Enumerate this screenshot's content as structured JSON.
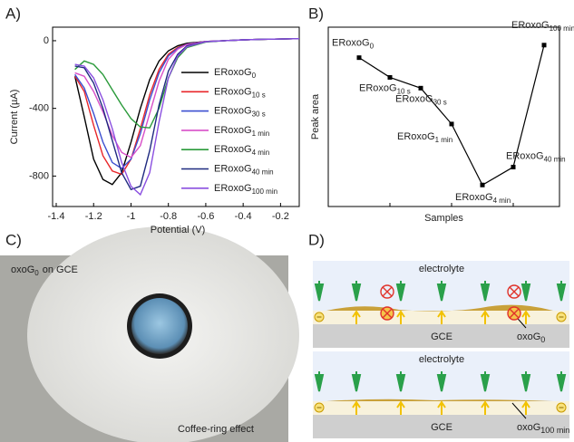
{
  "chart_data": [
    {
      "type": "line",
      "panel": "A)",
      "x_label": "Potential (V)",
      "y_label": "Current (µA)",
      "x": [
        -1.3,
        -1.25,
        -1.2,
        -1.15,
        -1.1,
        -1.05,
        -1.0,
        -0.95,
        -0.9,
        -0.85,
        -0.8,
        -0.75,
        -0.7,
        -0.6,
        -0.5,
        -0.4,
        -0.3,
        -0.2,
        -0.1
      ],
      "xlim": [
        -1.4,
        -0.1
      ],
      "xticks": [
        -1.4,
        -1.2,
        -1.0,
        -0.8,
        -0.6,
        -0.4,
        -0.2
      ],
      "ylim": [
        -980,
        80
      ],
      "yticks": [
        0,
        -400,
        -800
      ],
      "series": [
        {
          "name": "ERoxoG",
          "subscript": "0",
          "color": "#000000",
          "values": [
            -210,
            -450,
            -700,
            -820,
            -850,
            -780,
            -600,
            -400,
            -230,
            -120,
            -60,
            -30,
            -15,
            -5,
            0,
            5,
            8,
            10,
            12
          ]
        },
        {
          "name": "ERoxoG",
          "subscript": "10 s",
          "color": "#e8262a",
          "values": [
            -210,
            -300,
            -500,
            -680,
            -770,
            -790,
            -700,
            -520,
            -320,
            -170,
            -80,
            -40,
            -20,
            -5,
            0,
            5,
            8,
            10,
            12
          ]
        },
        {
          "name": "ERoxoG",
          "subscript": "30 s",
          "color": "#3b4fd0",
          "values": [
            -200,
            -280,
            -430,
            -600,
            -720,
            -755,
            -700,
            -550,
            -350,
            -190,
            -90,
            -45,
            -20,
            -5,
            0,
            5,
            8,
            10,
            12
          ]
        },
        {
          "name": "ERoxoG",
          "subscript": "1 min",
          "color": "#d84fc8",
          "values": [
            -190,
            -210,
            -300,
            -420,
            -560,
            -660,
            -690,
            -620,
            -430,
            -240,
            -110,
            -50,
            -22,
            -5,
            0,
            5,
            8,
            10,
            12
          ]
        },
        {
          "name": "ERoxoG",
          "subscript": "4 min",
          "color": "#2a9a3a",
          "values": [
            -170,
            -120,
            -140,
            -200,
            -290,
            -380,
            -460,
            -510,
            -515,
            -400,
            -220,
            -100,
            -40,
            -8,
            0,
            5,
            8,
            10,
            12
          ]
        },
        {
          "name": "ERoxoG",
          "subscript": "40 min",
          "color": "#1f2a80",
          "values": [
            -150,
            -160,
            -250,
            -400,
            -590,
            -780,
            -880,
            -860,
            -650,
            -380,
            -180,
            -80,
            -30,
            -6,
            0,
            5,
            8,
            10,
            12
          ]
        },
        {
          "name": "ERoxoG",
          "subscript": "100 min",
          "color": "#8a4fe0",
          "values": [
            -140,
            -150,
            -220,
            -350,
            -520,
            -720,
            -860,
            -910,
            -780,
            -480,
            -220,
            -90,
            -35,
            -6,
            0,
            5,
            8,
            10,
            12
          ]
        }
      ]
    },
    {
      "type": "line",
      "panel": "B)",
      "x_label": "Samples",
      "y_label": "Peak area",
      "categories": [
        null,
        null,
        null,
        null,
        null,
        null,
        null
      ],
      "values": [
        0.83,
        0.72,
        0.66,
        0.46,
        0.12,
        0.22,
        0.9
      ],
      "ylim": [
        0,
        1
      ],
      "color": "#000000",
      "point_labels": [
        "ERoxoG",
        "ERoxoG",
        "ERoxoG",
        "ERoxoG",
        "ERoxoG",
        "ERoxoG",
        "ERoxoG"
      ],
      "point_label_subs": [
        "0",
        "10 s",
        "30 s",
        "1 min",
        "4 min",
        "40 min",
        "100 min"
      ]
    }
  ],
  "photo": {
    "label": "C)",
    "caption": "oxoG",
    "caption_sub": "0",
    "caption_rest": "on GCE",
    "note": "Coffee-ring effect"
  },
  "diagram": {
    "label": "D)",
    "panels": [
      {
        "medium": "electrolyte",
        "electrode": "GCE",
        "film": "oxoG",
        "film_sub": "0"
      },
      {
        "medium": "electrolyte",
        "electrode": "GCE",
        "film": "oxoG",
        "film_sub": "100 min"
      }
    ]
  }
}
